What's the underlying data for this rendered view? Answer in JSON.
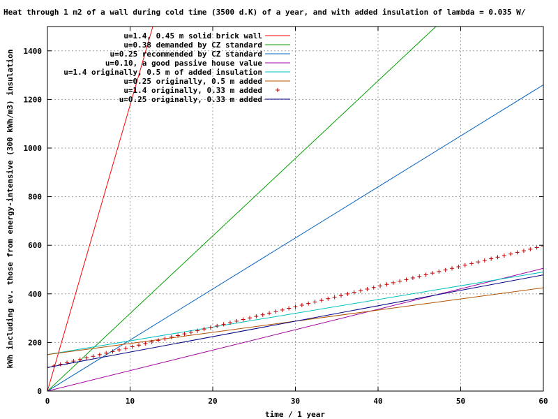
{
  "chart_data": {
    "type": "line",
    "title": "Heat through 1 m2 of a wall during cold time (3500 d.K) of a year, and with added insulation of lambda = 0.035 W/",
    "xlabel": "time / 1 year",
    "ylabel": "kWh including ev. those from energy-intensive (300 kWh/m3) insulation",
    "xlim": [
      0,
      60
    ],
    "ylim": [
      0,
      1500
    ],
    "xticks": [
      0,
      10,
      20,
      30,
      40,
      50,
      60
    ],
    "yticks": [
      0,
      200,
      400,
      600,
      800,
      1000,
      1200,
      1400
    ],
    "grid": true,
    "legend_position": "top-right",
    "series": [
      {
        "name": "u=1.4, 0.45 m solid brick wall",
        "color": "#ff0000",
        "style": "line",
        "points": [
          [
            0,
            0
          ],
          [
            12.75,
            1500
          ]
        ]
      },
      {
        "name": "u=0.38 demanded by CZ standard",
        "color": "#00a000",
        "style": "line",
        "points": [
          [
            0,
            0
          ],
          [
            47,
            1500
          ]
        ]
      },
      {
        "name": "u=0.25 recommended by CZ standard",
        "color": "#0060c0",
        "style": "line",
        "points": [
          [
            0,
            0
          ],
          [
            60,
            1260
          ]
        ]
      },
      {
        "name": "u=0.10, a good passive house value",
        "color": "#a000a0",
        "style": "line",
        "points": [
          [
            0,
            0
          ],
          [
            60,
            505
          ]
        ]
      },
      {
        "name": "u=1.4 originally, 0.5 m of added insulation",
        "color": "#00c0c0",
        "style": "line",
        "points": [
          [
            0,
            150
          ],
          [
            60,
            490
          ]
        ]
      },
      {
        "name": "u=0.25 originally, 0.5 m added",
        "color": "#b05000",
        "style": "line",
        "points": [
          [
            0,
            150
          ],
          [
            60,
            425
          ]
        ]
      },
      {
        "name": "u=1.4 originally, 0.33 m added",
        "color": "#c00000",
        "style": "points",
        "marker": "+",
        "start": [
          0,
          97
        ],
        "end": [
          60,
          597
        ],
        "count": 77
      },
      {
        "name": "u=0.25 originally, 0.33 m added",
        "color": "#000080",
        "style": "line",
        "points": [
          [
            0,
            97
          ],
          [
            60,
            478
          ]
        ]
      }
    ]
  }
}
